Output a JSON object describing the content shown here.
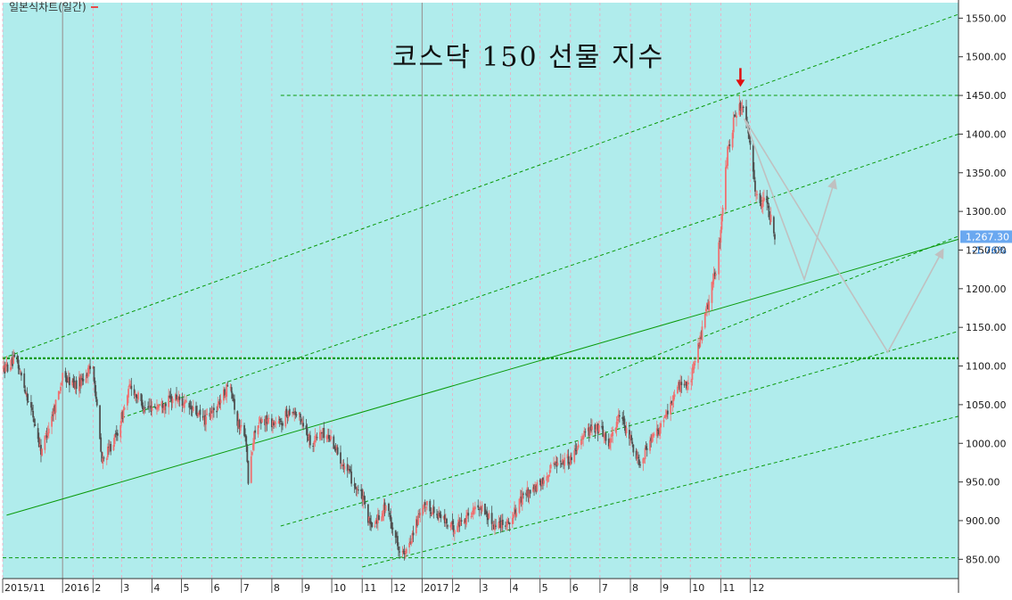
{
  "header": {
    "legend_label": "일본식차트(일간)",
    "legend_color": "#e84a4a"
  },
  "chart_data": {
    "type": "candlestick",
    "title": "코스닥 150 선물 지수",
    "ylim": [
      825,
      1570
    ],
    "y_ticks": [
      850,
      900,
      950,
      1000,
      1050,
      1100,
      1150,
      1200,
      1250,
      1300,
      1350,
      1400,
      1450,
      1500,
      1550
    ],
    "y_tick_labels": [
      "850.00",
      "900.00",
      "950.00",
      "1000.00",
      "1050.00",
      "1100.00",
      "1150.00",
      "1200.00",
      "1250.00",
      "1300.00",
      "1350.00",
      "1400.00",
      "1450.00",
      "1500.00",
      "1550.00"
    ],
    "x_range": [
      "2015-11-01",
      "2018-07-01"
    ],
    "x_ticks": [
      {
        "date": "2015-11-01",
        "label": "2015/11"
      },
      {
        "date": "2016-01-01",
        "label": "2016"
      },
      {
        "date": "2016-02-01",
        "label": "2"
      },
      {
        "date": "2016-03-01",
        "label": "3"
      },
      {
        "date": "2016-04-01",
        "label": "4"
      },
      {
        "date": "2016-05-01",
        "label": "5"
      },
      {
        "date": "2016-06-01",
        "label": "6"
      },
      {
        "date": "2016-07-01",
        "label": "7"
      },
      {
        "date": "2016-08-01",
        "label": "8"
      },
      {
        "date": "2016-09-01",
        "label": "9"
      },
      {
        "date": "2016-10-01",
        "label": "10"
      },
      {
        "date": "2016-11-01",
        "label": "11"
      },
      {
        "date": "2016-12-01",
        "label": "12"
      },
      {
        "date": "2017-01-01",
        "label": "2017"
      },
      {
        "date": "2017-02-01",
        "label": "2"
      },
      {
        "date": "2017-03-01",
        "label": "3"
      },
      {
        "date": "2017-04-01",
        "label": "4"
      },
      {
        "date": "2017-05-01",
        "label": "5"
      },
      {
        "date": "2017-06-01",
        "label": "6"
      },
      {
        "date": "2017-07-01",
        "label": "7"
      },
      {
        "date": "2017-08-01",
        "label": "8"
      },
      {
        "date": "2017-09-01",
        "label": "9"
      },
      {
        "date": "2017-10-01",
        "label": "10"
      },
      {
        "date": "2017-11-01",
        "label": "11"
      },
      {
        "date": "2017-12-01",
        "label": "12"
      }
    ],
    "year_separators": [
      "2016-01-01",
      "2017-01-01"
    ],
    "price_path": [
      [
        "2015-11-01",
        1095
      ],
      [
        "2015-11-15",
        1108
      ],
      [
        "2015-12-01",
        1040
      ],
      [
        "2015-12-10",
        990
      ],
      [
        "2015-12-20",
        1030
      ],
      [
        "2016-01-01",
        1085
      ],
      [
        "2016-01-15",
        1075
      ],
      [
        "2016-02-01",
        1100
      ],
      [
        "2016-02-10",
        975
      ],
      [
        "2016-02-25",
        1010
      ],
      [
        "2016-03-10",
        1075
      ],
      [
        "2016-03-25",
        1045
      ],
      [
        "2016-04-10",
        1050
      ],
      [
        "2016-04-25",
        1060
      ],
      [
        "2016-05-10",
        1045
      ],
      [
        "2016-05-25",
        1030
      ],
      [
        "2016-06-05",
        1045
      ],
      [
        "2016-06-20",
        1080
      ],
      [
        "2016-06-27",
        1025
      ],
      [
        "2016-07-05",
        1015
      ],
      [
        "2016-07-08",
        950
      ],
      [
        "2016-07-15",
        1020
      ],
      [
        "2016-07-25",
        1030
      ],
      [
        "2016-08-10",
        1025
      ],
      [
        "2016-08-20",
        1045
      ],
      [
        "2016-09-01",
        1030
      ],
      [
        "2016-09-10",
        1000
      ],
      [
        "2016-09-20",
        1015
      ],
      [
        "2016-10-01",
        1005
      ],
      [
        "2016-10-10",
        980
      ],
      [
        "2016-10-25",
        945
      ],
      [
        "2016-11-01",
        930
      ],
      [
        "2016-11-10",
        890
      ],
      [
        "2016-11-25",
        920
      ],
      [
        "2016-12-01",
        895
      ],
      [
        "2016-12-10",
        860
      ],
      [
        "2016-12-15",
        855
      ],
      [
        "2016-12-25",
        895
      ],
      [
        "2017-01-05",
        920
      ],
      [
        "2017-01-20",
        905
      ],
      [
        "2017-02-01",
        890
      ],
      [
        "2017-02-15",
        905
      ],
      [
        "2017-03-01",
        920
      ],
      [
        "2017-03-15",
        895
      ],
      [
        "2017-04-01",
        900
      ],
      [
        "2017-04-15",
        935
      ],
      [
        "2017-05-01",
        945
      ],
      [
        "2017-05-15",
        975
      ],
      [
        "2017-06-01",
        980
      ],
      [
        "2017-06-15",
        1015
      ],
      [
        "2017-07-01",
        1020
      ],
      [
        "2017-07-10",
        1000
      ],
      [
        "2017-07-20",
        1035
      ],
      [
        "2017-08-01",
        1005
      ],
      [
        "2017-08-10",
        975
      ],
      [
        "2017-08-20",
        1000
      ],
      [
        "2017-09-01",
        1020
      ],
      [
        "2017-09-10",
        1050
      ],
      [
        "2017-09-20",
        1075
      ],
      [
        "2017-10-01",
        1080
      ],
      [
        "2017-10-10",
        1130
      ],
      [
        "2017-10-20",
        1185
      ],
      [
        "2017-10-28",
        1230
      ],
      [
        "2017-11-01",
        1280
      ],
      [
        "2017-11-08",
        1380
      ],
      [
        "2017-11-15",
        1420
      ],
      [
        "2017-11-22",
        1440
      ],
      [
        "2017-11-25",
        1420
      ],
      [
        "2017-12-01",
        1385
      ],
      [
        "2017-12-05",
        1340
      ],
      [
        "2017-12-10",
        1300
      ],
      [
        "2017-12-15",
        1325
      ],
      [
        "2017-12-20",
        1300
      ],
      [
        "2017-12-26",
        1267
      ]
    ],
    "horizontal_lines": [
      {
        "name": "resistance-line",
        "y": 1450,
        "x_start": "2016-08-10",
        "x_end": "2018-07-01",
        "dashed": true
      },
      {
        "name": "support-line-1110",
        "y": 1110,
        "x_start": "2015-11-01",
        "x_end": "2018-07-01",
        "dashed": true,
        "bold": true
      },
      {
        "name": "support-line-852",
        "y": 852,
        "x_start": "2015-11-01",
        "x_end": "2018-07-01",
        "dashed": true
      }
    ],
    "trend_lines": [
      {
        "name": "channel-upper",
        "from": [
          "2015-11-01",
          1110
        ],
        "to": [
          "2018-07-01",
          1555
        ],
        "dashed": true
      },
      {
        "name": "channel-upper-mid",
        "from": [
          "2016-03-01",
          1033
        ],
        "to": [
          "2018-07-01",
          1400
        ],
        "dashed": true
      },
      {
        "name": "main-trend",
        "from": [
          "2015-11-05",
          907
        ],
        "to": [
          "2018-07-01",
          1264
        ],
        "dashed": false
      },
      {
        "name": "main-trend-parallel",
        "from": [
          "2017-07-01",
          1085
        ],
        "to": [
          "2018-07-01",
          1268
        ],
        "dashed": true
      },
      {
        "name": "channel-lower-mid",
        "from": [
          "2016-08-10",
          893
        ],
        "to": [
          "2018-07-01",
          1145
        ],
        "dashed": true
      },
      {
        "name": "channel-lower",
        "from": [
          "2016-11-01",
          840
        ],
        "to": [
          "2018-07-01",
          1035
        ],
        "dashed": true
      }
    ],
    "scenario_arrows": [
      {
        "name": "scenario-shallow",
        "points": [
          [
            "2017-11-25",
            1420
          ],
          [
            "2018-01-25",
            1212
          ],
          [
            "2018-02-25",
            1340
          ]
        ]
      },
      {
        "name": "scenario-deep",
        "points": [
          [
            "2017-11-25",
            1420
          ],
          [
            "2018-04-20",
            1118
          ],
          [
            "2018-06-15",
            1250
          ]
        ]
      }
    ],
    "peak_marker": {
      "date": "2017-11-21",
      "value": 1460,
      "color": "#e01010"
    },
    "last_price": {
      "label": "1,267.30",
      "value": 1267.3,
      "change": "-1.76%"
    },
    "colors": {
      "background": "#b0ecec",
      "up_candle": "#f07070",
      "down_candle": "#505050",
      "line": "#0a9a0a",
      "price_badge": "#6aa8f0",
      "scenario": "#c0c0c0",
      "grid_vertical": "#f2a8c0"
    },
    "grid": true,
    "legend": "top-left"
  }
}
